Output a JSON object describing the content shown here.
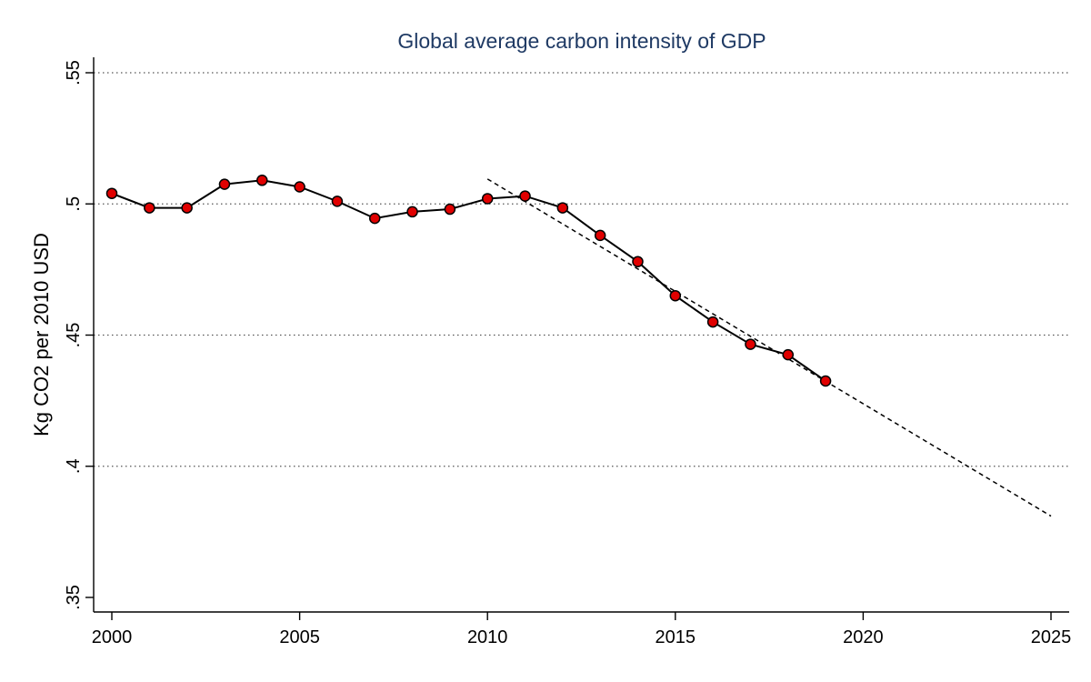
{
  "chart_data": {
    "type": "line",
    "title": "Global average carbon intensity of GDP",
    "xlabel": "",
    "ylabel": "Kg CO2 per 2010 USD",
    "xlim": [
      2000,
      2025
    ],
    "ylim": [
      0.35,
      0.55
    ],
    "x_ticks": [
      2000,
      2005,
      2010,
      2015,
      2020,
      2025
    ],
    "x_tick_labels": [
      "2000",
      "2005",
      "2010",
      "2015",
      "2020",
      "2025"
    ],
    "y_ticks": [
      0.35,
      0.4,
      0.45,
      0.5,
      0.55
    ],
    "y_tick_labels": [
      ".35",
      ".4",
      ".45",
      ".5",
      ".55"
    ],
    "grid": "horizontal dotted",
    "legend": "none",
    "series": [
      {
        "x": [
          2000,
          2001,
          2002,
          2003,
          2004,
          2005,
          2006,
          2007,
          2008,
          2009,
          2010,
          2011,
          2012,
          2013,
          2014,
          2015,
          2016,
          2017,
          2018,
          2019
        ],
        "values": [
          0.504,
          0.4985,
          0.4985,
          0.5075,
          0.509,
          0.5065,
          0.501,
          0.4945,
          0.497,
          0.498,
          0.502,
          0.503,
          0.4985,
          0.488,
          0.478,
          0.465,
          0.455,
          0.4465,
          0.4425,
          0.4325
        ],
        "line_color": "#000000",
        "marker_color": "#e00000",
        "marker_edge": "#000000"
      }
    ],
    "trend_line": {
      "style": "dashed",
      "color": "#000000",
      "x": [
        2010,
        2025
      ],
      "values": [
        0.5095,
        0.381
      ]
    }
  }
}
